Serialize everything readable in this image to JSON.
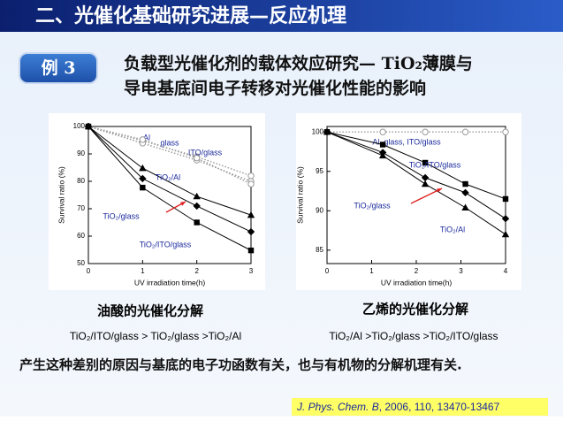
{
  "header": {
    "title": "二、光催化基础研究进展—反应机理"
  },
  "example": {
    "badge": "例 3",
    "line1": "负载型光催化剂的载体效应研究— TiO₂薄膜与",
    "line2": "导电基底间电子转移对光催化性能的影响"
  },
  "chart_data": [
    {
      "type": "line",
      "title": "油酸的光催化分解",
      "x_label": "UV irradiation time(h)",
      "y_label": "Survival ratio (%)",
      "ranking": "TiO₂/ITO/glass > TiO₂/glass >TiO₂/Al",
      "xlim": [
        0,
        3
      ],
      "xticks": [
        0,
        1,
        2,
        3
      ],
      "ylim": [
        50,
        100
      ],
      "yticks": [
        50,
        60,
        70,
        80,
        90,
        100
      ],
      "x": [
        0,
        1,
        2,
        3
      ],
      "series": [
        {
          "name": "Al",
          "color": "#999999",
          "marker": "circle",
          "dotted": true,
          "values": [
            100,
            94.8,
            89,
            82
          ]
        },
        {
          "name": "glass",
          "color": "#999999",
          "marker": "circle",
          "dotted": true,
          "values": [
            100,
            93.9,
            87.7,
            80
          ]
        },
        {
          "name": "ITO/glass",
          "color": "#999999",
          "marker": "circle",
          "dotted": true,
          "values": [
            100,
            95.2,
            88.5,
            79
          ]
        },
        {
          "name": "TiO₂/Al",
          "color": "#000000",
          "marker": "triangle",
          "dotted": false,
          "values": [
            100,
            84.8,
            74.5,
            67.7
          ]
        },
        {
          "name": "TiO₂/glass",
          "color": "#000000",
          "marker": "diamond",
          "dotted": false,
          "values": [
            100,
            81,
            71,
            61.6
          ]
        },
        {
          "name": "TiO₂/ITO/glass",
          "color": "#000000",
          "marker": "square",
          "dotted": false,
          "values": [
            100,
            77.7,
            65,
            54.8
          ]
        }
      ]
    },
    {
      "type": "line",
      "title": "乙烯的光催化分解",
      "x_label": "UV irradiation time(h)",
      "y_label": "Survival ratio (%)",
      "ranking": "TiO₂/Al >TiO₂/glass >TiO₂/ITO/glass",
      "xlim": [
        0,
        4
      ],
      "xticks": [
        0,
        1,
        2,
        3,
        4
      ],
      "ylim": [
        83.3,
        100.7
      ],
      "yticks": [
        85,
        90,
        95,
        100
      ],
      "x": [
        0,
        1.25,
        2.2,
        3.1,
        4
      ],
      "series": [
        {
          "name": "Al, glass, ITO/glass",
          "color": "#999999",
          "marker": "circle",
          "dotted": true,
          "values": [
            100,
            100,
            100,
            100,
            100
          ]
        },
        {
          "name": "TiO₂/ITO/glass",
          "color": "#000000",
          "marker": "square",
          "dotted": false,
          "values": [
            100,
            98.4,
            96.1,
            93.4,
            91.5
          ]
        },
        {
          "name": "TiO₂/glass",
          "color": "#000000",
          "marker": "diamond",
          "dotted": false,
          "values": [
            100,
            97.4,
            94.2,
            92.3,
            89
          ]
        },
        {
          "name": "TiO₂/Al",
          "color": "#000000",
          "marker": "triangle",
          "dotted": false,
          "values": [
            100,
            97,
            93.4,
            90.4,
            87
          ]
        }
      ]
    }
  ],
  "conclusion": "产生这种差别的原因与基底的电子功函数有关，也与有机物的分解机理有关.",
  "citation": {
    "journal": "J. Phys. Chem. B",
    "details": ", 2006, 110, 13470-13467"
  }
}
